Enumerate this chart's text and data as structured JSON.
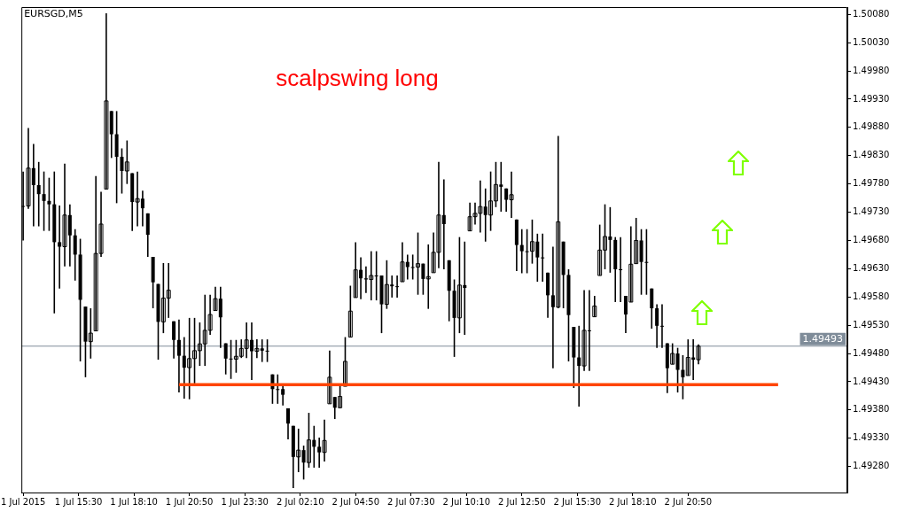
{
  "chart_data": {
    "type": "candlestick",
    "title": "EURSGD,M5",
    "annotations": [
      "scalpswing long"
    ],
    "color": "#000000",
    "x": [
      "2015-07-01T12:50",
      "2015-07-01T13:05",
      "2015-07-01T13:20",
      "2015-07-01T13:35",
      "2015-07-01T13:50",
      "2015-07-01T14:05",
      "2015-07-01T14:20",
      "2015-07-01T14:35",
      "2015-07-01T14:50",
      "2015-07-01T15:05",
      "2015-07-01T15:20",
      "2015-07-01T15:35",
      "2015-07-01T15:50",
      "2015-07-01T16:05",
      "2015-07-01T16:20",
      "2015-07-01T16:35",
      "2015-07-01T16:50",
      "2015-07-01T17:05",
      "2015-07-01T17:20",
      "2015-07-01T17:35",
      "2015-07-01T17:50",
      "2015-07-01T18:05",
      "2015-07-01T18:20",
      "2015-07-01T18:35",
      "2015-07-01T18:50",
      "2015-07-01T19:05",
      "2015-07-01T19:20",
      "2015-07-01T19:35",
      "2015-07-01T19:50",
      "2015-07-01T20:05",
      "2015-07-01T20:20",
      "2015-07-01T20:35",
      "2015-07-01T20:50",
      "2015-07-01T21:05",
      "2015-07-01T21:20",
      "2015-07-01T21:35",
      "2015-07-01T21:50",
      "2015-07-01T22:05",
      "2015-07-01T22:20",
      "2015-07-01T22:35",
      "2015-07-01T22:50",
      "2015-07-01T23:05",
      "2015-07-01T23:20",
      "2015-07-01T23:35",
      "2015-07-01T23:50",
      "2015-07-02T00:05",
      "2015-07-02T00:20",
      "2015-07-02T00:35",
      "2015-07-02T00:50",
      "2015-07-02T01:05",
      "2015-07-02T01:20",
      "2015-07-02T01:35",
      "2015-07-02T01:50",
      "2015-07-02T02:05",
      "2015-07-02T02:20",
      "2015-07-02T02:35",
      "2015-07-02T02:50",
      "2015-07-02T03:05",
      "2015-07-02T03:20",
      "2015-07-02T03:35",
      "2015-07-02T03:50",
      "2015-07-02T04:05",
      "2015-07-02T04:20",
      "2015-07-02T04:35",
      "2015-07-02T04:50",
      "2015-07-02T05:05",
      "2015-07-02T05:20",
      "2015-07-02T05:35",
      "2015-07-02T05:50",
      "2015-07-02T06:05",
      "2015-07-02T06:20",
      "2015-07-02T06:35",
      "2015-07-02T06:50",
      "2015-07-02T07:05",
      "2015-07-02T07:20",
      "2015-07-02T07:35",
      "2015-07-02T07:50",
      "2015-07-02T08:05",
      "2015-07-02T08:20",
      "2015-07-02T08:35",
      "2015-07-02T08:50",
      "2015-07-02T09:05",
      "2015-07-02T09:20",
      "2015-07-02T09:35",
      "2015-07-02T09:50",
      "2015-07-02T10:05",
      "2015-07-02T10:20",
      "2015-07-02T10:35",
      "2015-07-02T10:50",
      "2015-07-02T11:05",
      "2015-07-02T11:20",
      "2015-07-02T11:35",
      "2015-07-02T11:50",
      "2015-07-02T12:05",
      "2015-07-02T12:20",
      "2015-07-02T12:35",
      "2015-07-02T12:50",
      "2015-07-02T13:05",
      "2015-07-02T13:20",
      "2015-07-02T13:35",
      "2015-07-02T13:50",
      "2015-07-02T14:05",
      "2015-07-02T14:20",
      "2015-07-02T14:35",
      "2015-07-02T14:50",
      "2015-07-02T15:05",
      "2015-07-02T15:20",
      "2015-07-02T15:35",
      "2015-07-02T15:50",
      "2015-07-02T16:05",
      "2015-07-02T16:20",
      "2015-07-02T16:35",
      "2015-07-02T16:50",
      "2015-07-02T17:05",
      "2015-07-02T17:20",
      "2015-07-02T17:35",
      "2015-07-02T17:50",
      "2015-07-02T18:05",
      "2015-07-02T18:20",
      "2015-07-02T18:35",
      "2015-07-02T18:50",
      "2015-07-02T19:05",
      "2015-07-02T19:20",
      "2015-07-02T19:35",
      "2015-07-02T19:50",
      "2015-07-02T20:05",
      "2015-07-02T20:20",
      "2015-07-02T20:35",
      "2015-07-02T20:50",
      "2015-07-02T21:05",
      "2015-07-02T21:20"
    ],
    "ohlc": [
      [
        1.49741,
        1.49802,
        1.4968,
        1.49741
      ],
      [
        1.49741,
        1.49879,
        1.49736,
        1.49808
      ],
      [
        1.49808,
        1.49851,
        1.49705,
        1.49778
      ],
      [
        1.49778,
        1.49819,
        1.49705,
        1.49762
      ],
      [
        1.49762,
        1.49802,
        1.49697,
        1.4975
      ],
      [
        1.4975,
        1.49791,
        1.49697,
        1.49744
      ],
      [
        1.49744,
        1.49802,
        1.49551,
        1.49677
      ],
      [
        1.49677,
        1.49742,
        1.49595,
        1.49669
      ],
      [
        1.49669,
        1.49816,
        1.49634,
        1.49725
      ],
      [
        1.49725,
        1.49744,
        1.49634,
        1.49689
      ],
      [
        1.49689,
        1.497,
        1.49609,
        1.49655
      ],
      [
        1.49655,
        1.49683,
        1.49466,
        1.49575
      ],
      [
        1.49563,
        1.49563,
        1.49438,
        1.49501
      ],
      [
        1.49501,
        1.4956,
        1.49471,
        1.49516
      ],
      [
        1.4952,
        1.49794,
        1.4952,
        1.49657
      ],
      [
        1.49657,
        1.49766,
        1.49651,
        1.49709
      ],
      [
        1.49771,
        1.50082,
        1.49771,
        1.49927
      ],
      [
        1.49909,
        1.49909,
        1.49826,
        1.49868
      ],
      [
        1.49868,
        1.49909,
        1.49746,
        1.49828
      ],
      [
        1.49828,
        1.49843,
        1.49763,
        1.49803
      ],
      [
        1.49803,
        1.49857,
        1.4978,
        1.49819
      ],
      [
        1.49799,
        1.49799,
        1.49697,
        1.49748
      ],
      [
        1.49748,
        1.49802,
        1.49705,
        1.49754
      ],
      [
        1.49754,
        1.49768,
        1.49705,
        1.49737
      ],
      [
        1.49728,
        1.49728,
        1.49651,
        1.4969
      ],
      [
        1.49651,
        1.49651,
        1.4956,
        1.49606
      ],
      [
        1.49603,
        1.49603,
        1.49469,
        1.49536
      ],
      [
        1.49536,
        1.4964,
        1.49516,
        1.49578
      ],
      [
        1.49578,
        1.4964,
        1.49543,
        1.49592
      ],
      [
        1.49537,
        1.49537,
        1.49471,
        1.49504
      ],
      [
        1.49504,
        1.4954,
        1.49411,
        1.49476
      ],
      [
        1.49476,
        1.49509,
        1.494,
        1.49455
      ],
      [
        1.49455,
        1.49543,
        1.49399,
        1.49471
      ],
      [
        1.49471,
        1.49543,
        1.49427,
        1.49485
      ],
      [
        1.49485,
        1.49535,
        1.49458,
        1.49497
      ],
      [
        1.49497,
        1.49584,
        1.49458,
        1.49521
      ],
      [
        1.49521,
        1.49584,
        1.49513,
        1.49549
      ],
      [
        1.49556,
        1.49598,
        1.49556,
        1.49577
      ],
      [
        1.49577,
        1.49598,
        1.4949,
        1.49544
      ],
      [
        1.49498,
        1.49498,
        1.49443,
        1.49471
      ],
      [
        1.49471,
        1.49504,
        1.49435,
        1.4947
      ],
      [
        1.4947,
        1.49504,
        1.49446,
        1.49475
      ],
      [
        1.49475,
        1.49505,
        1.49472,
        1.49489
      ],
      [
        1.49489,
        1.49535,
        1.49472,
        1.49504
      ],
      [
        1.49504,
        1.49535,
        1.49433,
        1.49484
      ],
      [
        1.49484,
        1.49505,
        1.49472,
        1.49489
      ],
      [
        1.49489,
        1.49505,
        1.49465,
        1.49485
      ],
      [
        1.49485,
        1.49505,
        1.49465,
        1.49485
      ],
      [
        1.49443,
        1.49443,
        1.49391,
        1.49417
      ],
      [
        1.49417,
        1.49443,
        1.49391,
        1.49417
      ],
      [
        1.49417,
        1.49425,
        1.49388,
        1.49407
      ],
      [
        1.49383,
        1.49383,
        1.49328,
        1.49356
      ],
      [
        1.49352,
        1.49352,
        1.49242,
        1.49297
      ],
      [
        1.49297,
        1.49347,
        1.4927,
        1.49309
      ],
      [
        1.49309,
        1.49317,
        1.49257,
        1.49287
      ],
      [
        1.49287,
        1.49375,
        1.49278,
        1.49327
      ],
      [
        1.49327,
        1.49352,
        1.49278,
        1.49315
      ],
      [
        1.49315,
        1.49331,
        1.49278,
        1.49305
      ],
      [
        1.49305,
        1.49363,
        1.49289,
        1.49326
      ],
      [
        1.49391,
        1.49485,
        1.49391,
        1.49438
      ],
      [
        1.49403,
        1.49403,
        1.49364,
        1.49384
      ],
      [
        1.49384,
        1.49425,
        1.49383,
        1.49404
      ],
      [
        1.49422,
        1.49509,
        1.49422,
        1.49466
      ],
      [
        1.49509,
        1.496,
        1.49509,
        1.49555
      ],
      [
        1.49579,
        1.49677,
        1.49579,
        1.49628
      ],
      [
        1.49628,
        1.4965,
        1.49576,
        1.49613
      ],
      [
        1.49613,
        1.49634,
        1.49587,
        1.49611
      ],
      [
        1.49611,
        1.49661,
        1.49574,
        1.49618
      ],
      [
        1.49618,
        1.49661,
        1.49574,
        1.49618
      ],
      [
        1.49618,
        1.49618,
        1.49516,
        1.49567
      ],
      [
        1.49567,
        1.49645,
        1.49559,
        1.49602
      ],
      [
        1.49602,
        1.49618,
        1.49579,
        1.49599
      ],
      [
        1.49599,
        1.49618,
        1.49579,
        1.49599
      ],
      [
        1.49607,
        1.49677,
        1.49607,
        1.49642
      ],
      [
        1.49642,
        1.49655,
        1.49611,
        1.49633
      ],
      [
        1.49633,
        1.49655,
        1.49611,
        1.49633
      ],
      [
        1.49633,
        1.49694,
        1.49584,
        1.49639
      ],
      [
        1.49639,
        1.49639,
        1.49584,
        1.49612
      ],
      [
        1.49612,
        1.49673,
        1.49559,
        1.49616
      ],
      [
        1.49623,
        1.49694,
        1.49623,
        1.49659
      ],
      [
        1.49659,
        1.49819,
        1.49631,
        1.49725
      ],
      [
        1.49725,
        1.49788,
        1.49629,
        1.49709
      ],
      [
        1.49645,
        1.49645,
        1.49537,
        1.49591
      ],
      [
        1.49591,
        1.49611,
        1.49474,
        1.49543
      ],
      [
        1.49543,
        1.49686,
        1.49516,
        1.49601
      ],
      [
        1.49601,
        1.49678,
        1.49513,
        1.49596
      ],
      [
        1.49697,
        1.49747,
        1.49697,
        1.49722
      ],
      [
        1.49722,
        1.49747,
        1.49708,
        1.49728
      ],
      [
        1.49728,
        1.49786,
        1.49694,
        1.4974
      ],
      [
        1.4974,
        1.49772,
        1.49678,
        1.49725
      ],
      [
        1.49725,
        1.49802,
        1.49697,
        1.4975
      ],
      [
        1.4975,
        1.49819,
        1.49739,
        1.49779
      ],
      [
        1.49779,
        1.49819,
        1.49731,
        1.49775
      ],
      [
        1.49772,
        1.49772,
        1.49731,
        1.49752
      ],
      [
        1.49752,
        1.49802,
        1.4972,
        1.49761
      ],
      [
        1.49717,
        1.49717,
        1.49626,
        1.49672
      ],
      [
        1.49672,
        1.497,
        1.49622,
        1.49661
      ],
      [
        1.49661,
        1.497,
        1.49622,
        1.49661
      ],
      [
        1.49661,
        1.49717,
        1.49639,
        1.49678
      ],
      [
        1.49678,
        1.49692,
        1.49607,
        1.4965
      ],
      [
        1.4965,
        1.49692,
        1.49607,
        1.4965
      ],
      [
        1.49623,
        1.49623,
        1.49543,
        1.49583
      ],
      [
        1.49583,
        1.49669,
        1.49454,
        1.49562
      ],
      [
        1.49562,
        1.49865,
        1.4956,
        1.49713
      ],
      [
        1.49678,
        1.49678,
        1.4956,
        1.49619
      ],
      [
        1.49619,
        1.49629,
        1.49466,
        1.49548
      ],
      [
        1.49527,
        1.49527,
        1.49419,
        1.49473
      ],
      [
        1.49473,
        1.49529,
        1.49386,
        1.49458
      ],
      [
        1.49458,
        1.49592,
        1.49449,
        1.49521
      ],
      [
        1.49521,
        1.49592,
        1.49449,
        1.49521
      ],
      [
        1.49545,
        1.49582,
        1.49545,
        1.49564
      ],
      [
        1.49618,
        1.49708,
        1.49618,
        1.49663
      ],
      [
        1.49663,
        1.49744,
        1.49629,
        1.49687
      ],
      [
        1.49687,
        1.49739,
        1.49623,
        1.49681
      ],
      [
        1.49681,
        1.49686,
        1.49571,
        1.49629
      ],
      [
        1.49629,
        1.49686,
        1.49571,
        1.49629
      ],
      [
        1.49582,
        1.49582,
        1.49516,
        1.49549
      ],
      [
        1.49571,
        1.49705,
        1.49571,
        1.49638
      ],
      [
        1.49639,
        1.4972,
        1.49639,
        1.4968
      ],
      [
        1.4968,
        1.497,
        1.49584,
        1.49642
      ],
      [
        1.49642,
        1.497,
        1.49584,
        1.49642
      ],
      [
        1.49595,
        1.49595,
        1.49524,
        1.4956
      ],
      [
        1.4956,
        1.49567,
        1.4949,
        1.49529
      ],
      [
        1.49529,
        1.49567,
        1.4949,
        1.49529
      ],
      [
        1.49498,
        1.49498,
        1.4941,
        1.49454
      ],
      [
        1.49461,
        1.49498,
        1.49461,
        1.4948
      ],
      [
        1.4948,
        1.4949,
        1.49411,
        1.49451
      ],
      [
        1.49451,
        1.49477,
        1.49399,
        1.49438
      ],
      [
        1.49441,
        1.49505,
        1.49441,
        1.49473
      ],
      [
        1.49473,
        1.49505,
        1.49433,
        1.49469
      ],
      [
        1.49469,
        1.49496,
        1.49461,
        1.49493
      ]
    ],
    "series": [
      {
        "type": "line",
        "color": "#ff4500",
        "x": [
          "2015-07-01T20:20",
          "2015-07-03T01:10"
        ],
        "values": [
          1.49425,
          1.49425
        ]
      }
    ],
    "ref_lines": [
      {
        "axis": "y",
        "value": 1.49493,
        "label": "1.49493",
        "color": "#7f8c99"
      }
    ],
    "xlim": [
      "2015-07-01T12:45",
      "2015-07-03T04:30"
    ],
    "xticks": [
      {
        "value": "2015-07-01T12:50",
        "label": "1 Jul 2015"
      },
      {
        "value": "2015-07-01T15:30",
        "label": "1 Jul 15:30"
      },
      {
        "value": "2015-07-01T18:10",
        "label": "1 Jul 18:10"
      },
      {
        "value": "2015-07-01T20:50",
        "label": "1 Jul 20:50"
      },
      {
        "value": "2015-07-01T23:30",
        "label": "1 Jul 23:30"
      },
      {
        "value": "2015-07-02T02:10",
        "label": "2 Jul 02:10"
      },
      {
        "value": "2015-07-02T04:50",
        "label": "2 Jul 04:50"
      },
      {
        "value": "2015-07-02T07:30",
        "label": "2 Jul 07:30"
      },
      {
        "value": "2015-07-02T10:10",
        "label": "2 Jul 10:10"
      },
      {
        "value": "2015-07-02T12:50",
        "label": "2 Jul 12:50"
      },
      {
        "value": "2015-07-02T15:30",
        "label": "2 Jul 15:30"
      },
      {
        "value": "2015-07-02T18:10",
        "label": "2 Jul 18:10"
      },
      {
        "value": "2015-07-02T20:50",
        "label": "2 Jul 20:50"
      }
    ],
    "ylim": [
      1.49234,
      1.50093
    ],
    "yticks": [
      {
        "value": 1.4928,
        "label": "1.49280"
      },
      {
        "value": 1.4933,
        "label": "1.49330"
      },
      {
        "value": 1.4938,
        "label": "1.49380"
      },
      {
        "value": 1.4943,
        "label": "1.49430"
      },
      {
        "value": 1.4948,
        "label": "1.49480"
      },
      {
        "value": 1.4953,
        "label": "1.49530"
      },
      {
        "value": 1.4958,
        "label": "1.49580"
      },
      {
        "value": 1.4963,
        "label": "1.49630"
      },
      {
        "value": 1.4968,
        "label": "1.49680"
      },
      {
        "value": 1.4973,
        "label": "1.49730"
      },
      {
        "value": 1.4978,
        "label": "1.49780"
      },
      {
        "value": 1.4983,
        "label": "1.49830"
      },
      {
        "value": 1.4988,
        "label": "1.49880"
      },
      {
        "value": 1.4993,
        "label": "1.49930"
      },
      {
        "value": 1.4998,
        "label": "1.49980"
      },
      {
        "value": 1.5003,
        "label": "1.50030"
      },
      {
        "value": 1.5008,
        "label": "1.50080"
      }
    ]
  }
}
